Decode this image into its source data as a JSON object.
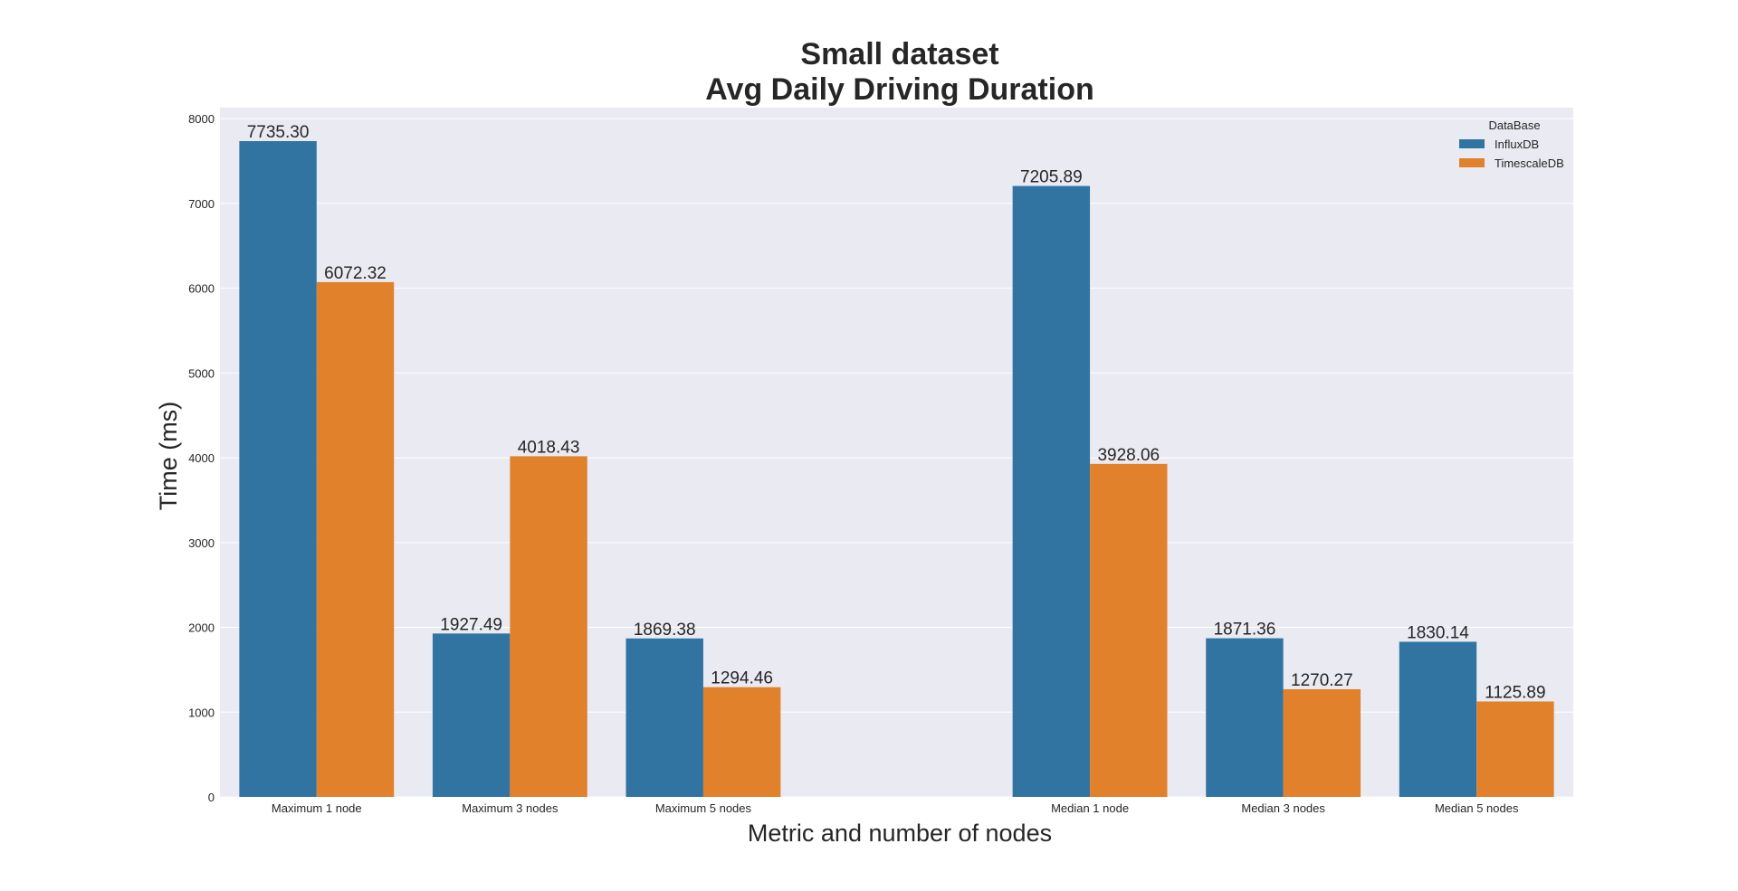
{
  "chart_data": {
    "type": "bar",
    "title": [
      "Small dataset",
      "Avg Daily Driving Duration"
    ],
    "xlabel": "Metric and number of nodes",
    "ylabel": "Time (ms)",
    "ylim": [
      0,
      8130
    ],
    "yticks": [
      "0",
      "1000",
      "2000",
      "3000",
      "4000",
      "5000",
      "6000",
      "7000",
      "8000"
    ],
    "grid": true,
    "background": "#eaeaf2",
    "legend": {
      "title": "DataBase",
      "placement": "top-right"
    },
    "categories": [
      "Maximum 1 node",
      "Maximum 3 nodes",
      "Maximum 5 nodes",
      "",
      "Median 1 node",
      "Median 3 nodes",
      "Median 5 nodes"
    ],
    "series": [
      {
        "name": "InfluxDB",
        "color": "#3274a1",
        "values": [
          7735.3,
          1927.49,
          1869.38,
          null,
          7205.89,
          1871.36,
          1830.14
        ],
        "labels": [
          "7735.30",
          "1927.49",
          "1869.38",
          "",
          "7205.89",
          "1871.36",
          "1830.14"
        ]
      },
      {
        "name": "TimescaleDB",
        "color": "#e1812c",
        "values": [
          6072.32,
          4018.43,
          1294.46,
          null,
          3928.06,
          1270.27,
          1125.89
        ],
        "labels": [
          "6072.32",
          "4018.43",
          "1294.46",
          "",
          "3928.06",
          "1270.27",
          "1125.89"
        ]
      }
    ]
  }
}
